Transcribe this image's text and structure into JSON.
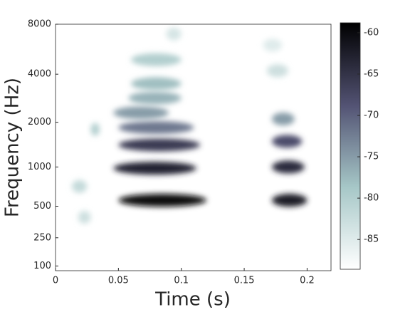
{
  "chart_data": {
    "type": "spectrogram",
    "xlabel": "Time (s)",
    "ylabel": "Frequency (Hz)",
    "xlim": [
      0,
      0.219
    ],
    "xticks": [
      0,
      0.05,
      0.1,
      0.15,
      0.2
    ],
    "ylim": [
      80,
      8000
    ],
    "yscale": "erb",
    "yticks": [
      100,
      250,
      500,
      1000,
      2000,
      4000,
      8000
    ],
    "clim": [
      -88.6,
      -58.8
    ],
    "cticks": [
      -85,
      -80,
      -75,
      -70,
      -65,
      -60
    ],
    "colormap": [
      "#ffffff",
      "#a6c7c7",
      "#525273",
      "#000000"
    ],
    "bands": [
      {
        "t": [
          0.05,
          0.12
        ],
        "f": 560,
        "db": -60
      },
      {
        "t": [
          0.046,
          0.112
        ],
        "f": 980,
        "db": -63
      },
      {
        "t": [
          0.05,
          0.115
        ],
        "f": 1420,
        "db": -66
      },
      {
        "t": [
          0.05,
          0.11
        ],
        "f": 1850,
        "db": -72
      },
      {
        "t": [
          0.046,
          0.09
        ],
        "f": 2300,
        "db": -75
      },
      {
        "t": [
          0.058,
          0.1
        ],
        "f": 2850,
        "db": -77
      },
      {
        "t": [
          0.06,
          0.1
        ],
        "f": 3500,
        "db": -78
      },
      {
        "t": [
          0.06,
          0.1
        ],
        "f": 4900,
        "db": -80
      },
      {
        "t": [
          0.088,
          0.1
        ],
        "f": 7000,
        "db": -84
      },
      {
        "t": [
          0.013,
          0.025
        ],
        "f": 720,
        "db": -82
      },
      {
        "t": [
          0.018,
          0.028
        ],
        "f": 400,
        "db": -83
      },
      {
        "t": [
          0.028,
          0.035
        ],
        "f": 1800,
        "db": -80
      },
      {
        "t": [
          0.172,
          0.2
        ],
        "f": 560,
        "db": -62
      },
      {
        "t": [
          0.172,
          0.198
        ],
        "f": 1000,
        "db": -64
      },
      {
        "t": [
          0.172,
          0.196
        ],
        "f": 1500,
        "db": -68
      },
      {
        "t": [
          0.172,
          0.19
        ],
        "f": 2100,
        "db": -75
      },
      {
        "t": [
          0.168,
          0.185
        ],
        "f": 4200,
        "db": -83
      },
      {
        "t": [
          0.165,
          0.18
        ],
        "f": 6000,
        "db": -85
      }
    ]
  }
}
